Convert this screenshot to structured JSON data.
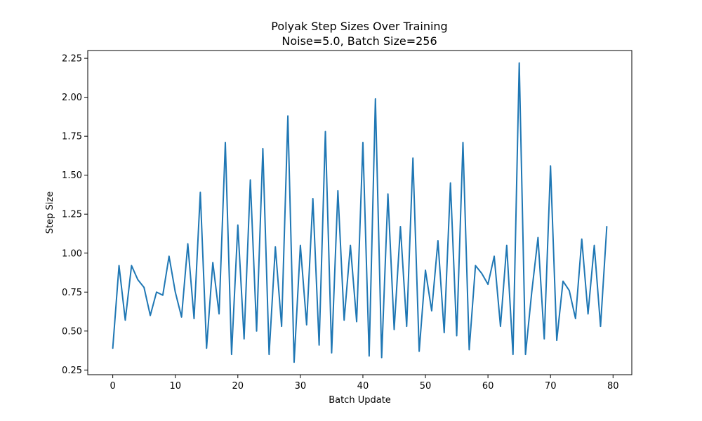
{
  "chart_data": {
    "type": "line",
    "title": "Polyak Step Sizes Over Training",
    "subtitle": "Noise=5.0, Batch Size=256",
    "xlabel": "Batch Update",
    "ylabel": "Step Size",
    "xlim": [
      -4,
      83
    ],
    "ylim": [
      0.22,
      2.3
    ],
    "xticks": [
      0,
      10,
      20,
      30,
      40,
      50,
      60,
      70,
      80
    ],
    "yticks": [
      0.25,
      0.5,
      0.75,
      1.0,
      1.25,
      1.5,
      1.75,
      2.0,
      2.25
    ],
    "ytick_labels": [
      "0.25",
      "0.50",
      "0.75",
      "1.00",
      "1.25",
      "1.50",
      "1.75",
      "2.00",
      "2.25"
    ],
    "grid": false,
    "legend": "none",
    "series": [
      {
        "color": "#1f77b4",
        "x": [
          0,
          1,
          2,
          3,
          4,
          5,
          6,
          7,
          8,
          9,
          10,
          11,
          12,
          13,
          14,
          15,
          16,
          17,
          18,
          19,
          20,
          21,
          22,
          23,
          24,
          25,
          26,
          27,
          28,
          29,
          30,
          31,
          32,
          33,
          34,
          35,
          36,
          37,
          38,
          39,
          40,
          41,
          42,
          43,
          44,
          45,
          46,
          47,
          48,
          49,
          50,
          51,
          52,
          53,
          54,
          55,
          56,
          57,
          58,
          59,
          60,
          61,
          62,
          63,
          64,
          65,
          66,
          67,
          68,
          69,
          70,
          71,
          72,
          73,
          74,
          75,
          76,
          77,
          78,
          79
        ],
        "values": [
          0.39,
          0.92,
          0.57,
          0.92,
          0.83,
          0.78,
          0.6,
          0.75,
          0.73,
          0.98,
          0.75,
          0.59,
          1.06,
          0.58,
          1.39,
          0.39,
          0.94,
          0.61,
          1.71,
          0.35,
          1.18,
          0.45,
          1.47,
          0.5,
          1.67,
          0.35,
          1.04,
          0.53,
          1.88,
          0.3,
          1.05,
          0.54,
          1.35,
          0.41,
          1.78,
          0.36,
          1.4,
          0.57,
          1.05,
          0.56,
          1.71,
          0.34,
          1.99,
          0.33,
          1.38,
          0.51,
          1.17,
          0.53,
          1.61,
          0.37,
          0.89,
          0.63,
          1.08,
          0.49,
          1.45,
          0.47,
          1.71,
          0.38,
          0.92,
          0.87,
          0.8,
          0.98,
          0.53,
          1.05,
          0.35,
          2.22,
          0.35,
          0.75,
          1.1,
          0.45,
          1.56,
          0.44,
          0.82,
          0.76,
          0.58,
          1.09,
          0.61,
          1.05,
          0.53,
          1.17
        ]
      }
    ]
  }
}
